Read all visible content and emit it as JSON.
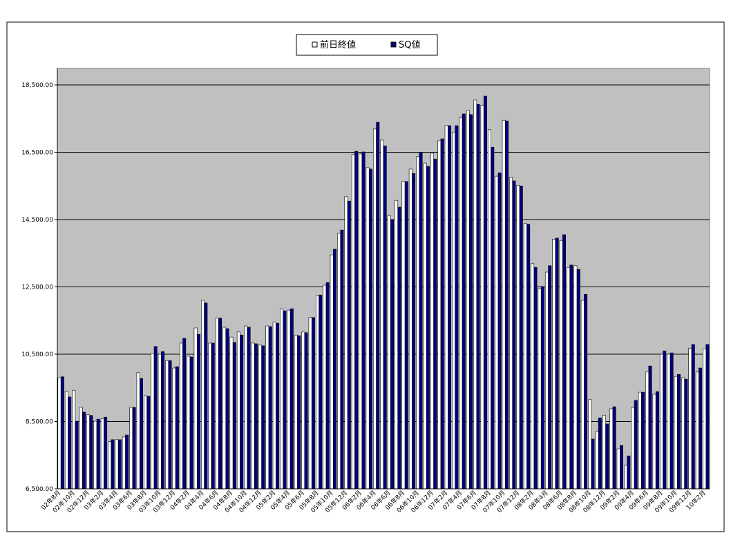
{
  "chart_data": {
    "type": "bar",
    "categories": [
      "02年8月",
      null,
      "02年10月",
      null,
      "02年12月",
      null,
      "03年2月",
      null,
      "03年4月",
      null,
      "03年6月",
      null,
      "03年8月",
      null,
      "03年10月",
      null,
      "03年12月",
      null,
      "04年2月",
      null,
      "04年4月",
      null,
      "04年6月",
      null,
      "04年8月",
      null,
      "04年10月",
      null,
      "04年12月",
      null,
      "05年2月",
      null,
      "05年4月",
      null,
      "05年6月",
      null,
      "05年8月",
      null,
      "05年10月",
      null,
      "05年12月",
      null,
      "06年2月",
      null,
      "06年4月",
      null,
      "06年6月",
      null,
      "06年8月",
      null,
      "06年10月",
      null,
      "06年12月",
      null,
      "07年2月",
      null,
      "07年4月",
      null,
      "07年6月",
      null,
      "07年8月",
      null,
      "07年10月",
      null,
      "07年12月",
      null,
      "08年2月",
      null,
      "08年4月",
      null,
      "08年6月",
      null,
      "08年8月",
      null,
      "08年10月",
      null,
      "08年12月",
      null,
      "09年2月",
      null,
      "09年4月",
      null,
      "09年6月",
      null,
      "09年8月",
      null,
      "09年10月",
      null,
      "09年12月",
      null,
      "10年2月"
    ],
    "series": [
      {
        "name": "前日終値",
        "color": "#ffffff",
        "values": [
          9800,
          9400,
          9430,
          8920,
          8700,
          8510,
          8590,
          7900,
          7960,
          8040,
          8920,
          9950,
          9270,
          10520,
          10500,
          10310,
          10090,
          10830,
          10440,
          11280,
          12100,
          10830,
          11570,
          11300,
          11010,
          11160,
          11340,
          10830,
          10770,
          11340,
          11460,
          11850,
          11810,
          11070,
          11160,
          11590,
          12240,
          12550,
          13450,
          14090,
          15180,
          16430,
          16450,
          16040,
          17190,
          16860,
          14620,
          15070,
          15630,
          16000,
          16370,
          16180,
          16470,
          16840,
          17290,
          17100,
          17530,
          17740,
          18050,
          17900,
          17170,
          15790,
          17450,
          15750,
          15520,
          14380,
          13190,
          12450,
          12940,
          13920,
          13880,
          13080,
          13130,
          12100,
          9150,
          8200,
          8690,
          8880,
          7690,
          7200,
          8920,
          9370,
          9970,
          9310,
          10500,
          10500,
          9840,
          9800,
          10680,
          9970,
          10660
        ]
      },
      {
        "name": "SQ値",
        "color": "#000080",
        "values": [
          9830,
          9230,
          8510,
          8780,
          8680,
          8570,
          8630,
          7960,
          7960,
          8100,
          8920,
          9780,
          9250,
          10730,
          10580,
          10310,
          10130,
          10970,
          10420,
          11090,
          12020,
          10830,
          11570,
          11260,
          10850,
          11070,
          11300,
          10810,
          10750,
          11320,
          11420,
          11790,
          11850,
          11050,
          11140,
          11590,
          12260,
          12630,
          13620,
          14190,
          15050,
          16530,
          16510,
          16000,
          17390,
          16690,
          14480,
          14870,
          15630,
          15870,
          16490,
          16080,
          16300,
          16900,
          17290,
          17290,
          17640,
          17620,
          17920,
          18170,
          16650,
          15890,
          17430,
          15650,
          15500,
          14360,
          13080,
          12510,
          13130,
          13950,
          14050,
          13150,
          13020,
          12280,
          7980,
          8610,
          8430,
          8940,
          7790,
          7480,
          9130,
          9370,
          10150,
          9390,
          10600,
          10540,
          9900,
          9760,
          10790,
          10090,
          10790
        ]
      }
    ],
    "ylim": [
      6500,
      18500
    ],
    "yticks": [
      {
        "value": 6500,
        "label": "6,500.00"
      },
      {
        "value": 8500,
        "label": "8,500.00"
      },
      {
        "value": 10500,
        "label": "10,500.00"
      },
      {
        "value": 12500,
        "label": "12,500.00"
      },
      {
        "value": 14500,
        "label": "14,500.00"
      },
      {
        "value": 16500,
        "label": "16,500.00"
      },
      {
        "value": 18500,
        "label": "18,500.00"
      }
    ],
    "grid": true,
    "legend": "top"
  }
}
